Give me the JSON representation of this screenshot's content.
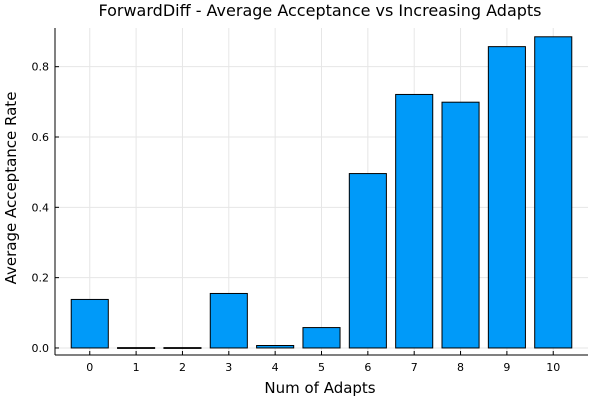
{
  "chart_data": {
    "type": "bar",
    "title": "ForwardDiff - Average Acceptance vs Increasing Adapts",
    "xlabel": "Num of Adapts",
    "ylabel": "Average Acceptance Rate",
    "categories": [
      "0",
      "1",
      "2",
      "3",
      "4",
      "5",
      "6",
      "7",
      "8",
      "9",
      "10"
    ],
    "values": [
      0.138,
      0.001,
      0.001,
      0.155,
      0.007,
      0.058,
      0.496,
      0.721,
      0.699,
      0.857,
      0.885
    ],
    "ylim": [
      -0.02,
      0.91
    ],
    "yticks": [
      0.0,
      0.2,
      0.4,
      0.6,
      0.8
    ],
    "ytick_labels": [
      "0.0",
      "0.2",
      "0.4",
      "0.6",
      "0.8"
    ],
    "grid": true,
    "legend": "none",
    "bar_color": "#009AF9"
  }
}
